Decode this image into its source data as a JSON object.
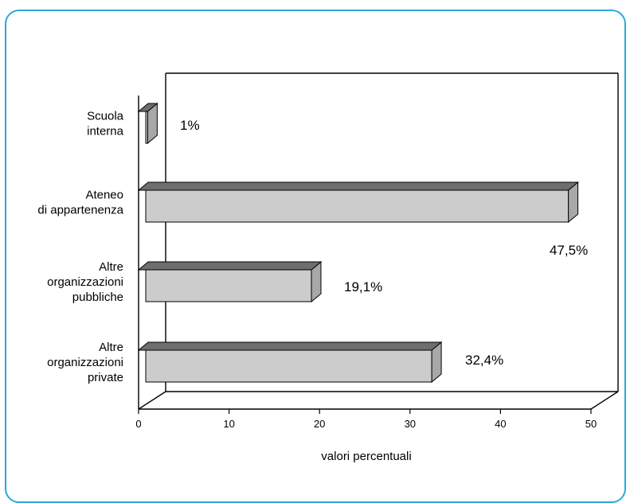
{
  "chart_data": {
    "type": "bar",
    "orientation": "horizontal",
    "style": "3d",
    "categories": [
      [
        "Scuola",
        "interna"
      ],
      [
        "Ateneo",
        "di appartenenza"
      ],
      [
        "Altre",
        "organizzazioni",
        "pubbliche"
      ],
      [
        "Altre",
        "organizzazioni",
        "private"
      ]
    ],
    "values": [
      1,
      47.5,
      19.1,
      32.4
    ],
    "data_labels": [
      "1%",
      "47,5%",
      "19,1%",
      "32,4%"
    ],
    "xlabel": "valori percentuali",
    "xlim": [
      0,
      50
    ],
    "xticks": [
      "0",
      "10",
      "20",
      "30",
      "40",
      "50"
    ],
    "grid": false,
    "colors": {
      "bar_front": "#cccccc",
      "bar_top": "#6e6e6e",
      "bar_side": "#a8a8a8",
      "frame": "#29a8e0"
    }
  }
}
